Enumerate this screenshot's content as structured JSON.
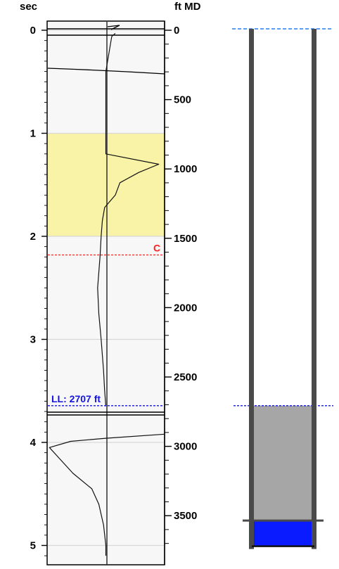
{
  "chart_data": {
    "type": "line",
    "left_axis": {
      "label": "sec",
      "ticks": [
        "0",
        "1",
        "2",
        "3",
        "4",
        "5"
      ],
      "range": [
        0,
        5.1
      ]
    },
    "right_axis": {
      "label": "ft MD",
      "ticks": [
        "0",
        "500",
        "1000",
        "1500",
        "2000",
        "2500",
        "3000",
        "3500"
      ],
      "range": [
        0,
        3810
      ]
    },
    "shaded_interval": {
      "from_sec": 1.0,
      "to_sec": 2.0,
      "color": "#f8f3a6"
    },
    "markers": [
      {
        "label": "C",
        "depth_ft": 1620,
        "color": "#ff2020"
      },
      {
        "label": "LL: 2707 ft",
        "depth_ft": 2707,
        "color": "#1414e0"
      }
    ],
    "series": [
      {
        "segment": "upper",
        "points": [
          [
            0.03,
            0.58
          ],
          [
            0.06,
            0.55
          ],
          [
            0.4,
            0.5
          ],
          [
            1.0,
            0.5
          ],
          [
            1.2,
            0.5
          ],
          [
            1.3,
            0.95
          ],
          [
            1.38,
            0.78
          ],
          [
            1.48,
            0.62
          ],
          [
            1.6,
            0.58
          ],
          [
            1.72,
            0.49
          ],
          [
            1.85,
            0.47
          ],
          [
            2.0,
            0.46
          ],
          [
            2.2,
            0.45
          ],
          [
            2.5,
            0.43
          ],
          [
            2.75,
            0.44
          ],
          [
            3.0,
            0.46
          ],
          [
            3.3,
            0.48
          ],
          [
            3.5,
            0.49
          ],
          [
            3.65,
            0.5
          ]
        ]
      },
      {
        "segment": "lower",
        "points": [
          [
            3.92,
            1.0
          ],
          [
            3.96,
            0.5
          ],
          [
            3.99,
            0.2
          ],
          [
            4.05,
            0.02
          ],
          [
            4.15,
            0.1
          ],
          [
            4.3,
            0.22
          ],
          [
            4.45,
            0.38
          ],
          [
            4.6,
            0.44
          ],
          [
            4.8,
            0.48
          ],
          [
            5.0,
            0.5
          ],
          [
            5.1,
            0.5
          ]
        ]
      }
    ],
    "wellbore": {
      "fluid_level_ft": 2707,
      "packer_ft": 3540,
      "bottom_ft": 3720,
      "fluid_color": "#a6a6a6",
      "bottom_fill_color": "#0a1cff",
      "casing_color": "#4a4a4a"
    }
  }
}
